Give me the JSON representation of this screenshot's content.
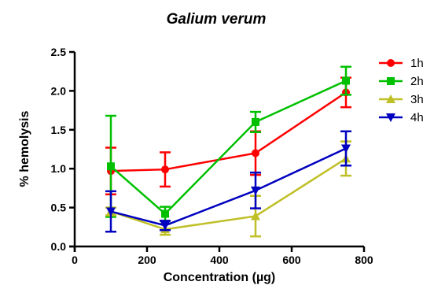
{
  "chart_data": {
    "type": "line",
    "title": "Galium verum",
    "xlabel": "Concentration (µg)",
    "ylabel": "% hemolysis",
    "xlim": [
      0,
      800
    ],
    "ylim": [
      0,
      2.5
    ],
    "xticks": [
      0,
      200,
      400,
      600,
      800
    ],
    "yticks": [
      0.0,
      0.5,
      1.0,
      1.5,
      2.0,
      2.5
    ],
    "xtick_labels": [
      "0",
      "200",
      "400",
      "600",
      "800"
    ],
    "ytick_labels": [
      "0.0",
      "0.5",
      "1.0",
      "1.5",
      "2.0",
      "2.5"
    ],
    "grid": false,
    "legend_position": "right",
    "x": [
      100,
      250,
      500,
      750
    ],
    "series": [
      {
        "name": "1h",
        "color": "#ff0000",
        "marker": "circle",
        "values": [
          0.97,
          0.99,
          1.2,
          1.98
        ],
        "errors": [
          0.3,
          0.22,
          0.28,
          0.19
        ]
      },
      {
        "name": "2h",
        "color": "#00c000",
        "marker": "square",
        "values": [
          1.03,
          0.42,
          1.6,
          2.13
        ],
        "errors": [
          0.65,
          0.09,
          0.13,
          0.18
        ]
      },
      {
        "name": "3h",
        "color": "#bfbf26",
        "marker": "triangle-up",
        "values": [
          0.45,
          0.22,
          0.39,
          1.13
        ],
        "errors": [
          0.05,
          0.07,
          0.26,
          0.22
        ]
      },
      {
        "name": "4h",
        "color": "#0000c0",
        "marker": "triangle-down",
        "values": [
          0.45,
          0.27,
          0.72,
          1.26
        ],
        "errors": [
          0.26,
          0.06,
          0.23,
          0.22
        ]
      }
    ]
  }
}
